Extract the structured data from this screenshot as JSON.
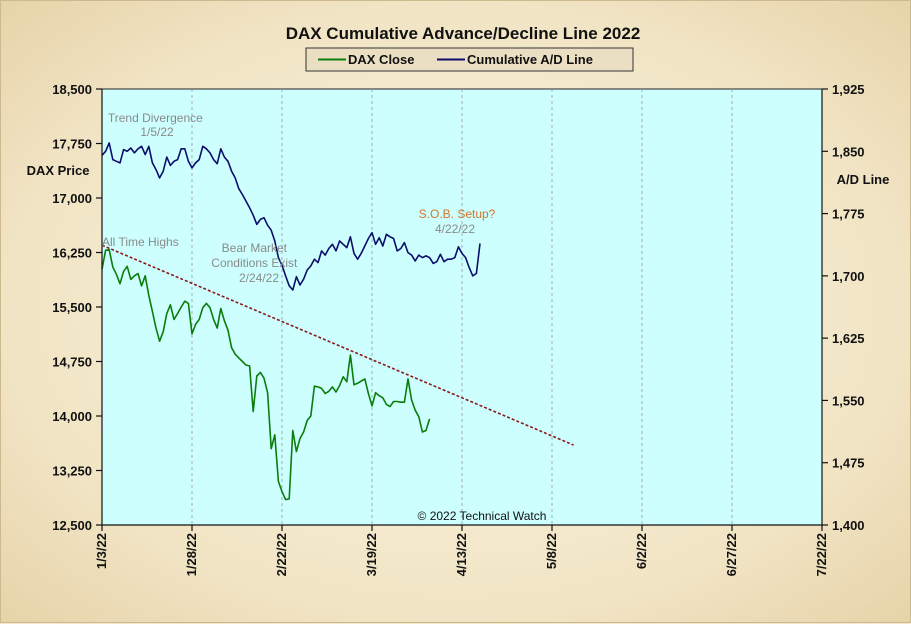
{
  "chart_data": {
    "type": "line",
    "title": "DAX Cumulative Advance/Decline Line 2022",
    "ylabel_left": "DAX Price",
    "ylabel_right": "A/D Line",
    "ylim_left": [
      12500,
      18500
    ],
    "ylim_right": [
      1400,
      1925
    ],
    "yticks_left": [
      "18,500",
      "17,750",
      "17,000",
      "16,250",
      "15,500",
      "14,750",
      "14,000",
      "13,250",
      "12,500"
    ],
    "yticks_right": [
      "1,925",
      "1,850",
      "1,775",
      "1,700",
      "1,625",
      "1,550",
      "1,475",
      "1,400"
    ],
    "xticks": [
      "1/3/22",
      "1/28/22",
      "2/22/22",
      "3/19/22",
      "4/13/22",
      "5/8/22",
      "6/2/22",
      "6/27/22",
      "7/22/22"
    ],
    "xlim": [
      "2022-01-03",
      "2022-07-22"
    ],
    "grid": "vertical dashed at x ticks",
    "legend": {
      "position": "top-center",
      "entries": [
        {
          "name": "DAX Close",
          "color": "#0a7d0a"
        },
        {
          "name": "Cumulative A/D Line",
          "color": "#0d0d6b"
        }
      ]
    },
    "colors": {
      "plot_bg": "#ccfffe",
      "trendline": "#8b1a1a"
    },
    "series": [
      {
        "name": "Cumulative A/D Line",
        "axis": "right",
        "color": "#0d0d6b",
        "points": [
          [
            "2022-01-03",
            1845
          ],
          [
            "2022-01-04",
            1850
          ],
          [
            "2022-01-05",
            1860
          ],
          [
            "2022-01-06",
            1840
          ],
          [
            "2022-01-07",
            1838
          ],
          [
            "2022-01-08",
            1836
          ],
          [
            "2022-01-09",
            1852
          ],
          [
            "2022-01-10",
            1850
          ],
          [
            "2022-01-11",
            1854
          ],
          [
            "2022-01-12",
            1848
          ],
          [
            "2022-01-13",
            1853
          ],
          [
            "2022-01-14",
            1856
          ],
          [
            "2022-01-15",
            1846
          ],
          [
            "2022-01-16",
            1856
          ],
          [
            "2022-01-17",
            1836
          ],
          [
            "2022-01-18",
            1828
          ],
          [
            "2022-01-19",
            1818
          ],
          [
            "2022-01-20",
            1826
          ],
          [
            "2022-01-21",
            1843
          ],
          [
            "2022-01-22",
            1833
          ],
          [
            "2022-01-23",
            1838
          ],
          [
            "2022-01-24",
            1840
          ],
          [
            "2022-01-25",
            1853
          ],
          [
            "2022-01-26",
            1853
          ],
          [
            "2022-01-27",
            1838
          ],
          [
            "2022-01-28",
            1830
          ],
          [
            "2022-01-29",
            1836
          ],
          [
            "2022-01-30",
            1840
          ],
          [
            "2022-01-31",
            1856
          ],
          [
            "2022-02-01",
            1853
          ],
          [
            "2022-02-02",
            1848
          ],
          [
            "2022-02-03",
            1840
          ],
          [
            "2022-02-04",
            1835
          ],
          [
            "2022-02-05",
            1853
          ],
          [
            "2022-02-06",
            1843
          ],
          [
            "2022-02-07",
            1838
          ],
          [
            "2022-02-08",
            1826
          ],
          [
            "2022-02-09",
            1818
          ],
          [
            "2022-02-10",
            1805
          ],
          [
            "2022-02-11",
            1798
          ],
          [
            "2022-02-12",
            1790
          ],
          [
            "2022-02-13",
            1782
          ],
          [
            "2022-02-14",
            1773
          ],
          [
            "2022-02-15",
            1762
          ],
          [
            "2022-02-16",
            1768
          ],
          [
            "2022-02-17",
            1770
          ],
          [
            "2022-02-18",
            1761
          ],
          [
            "2022-02-19",
            1755
          ],
          [
            "2022-02-20",
            1742
          ],
          [
            "2022-02-21",
            1722
          ],
          [
            "2022-02-22",
            1713
          ],
          [
            "2022-02-23",
            1700
          ],
          [
            "2022-02-24",
            1688
          ],
          [
            "2022-02-25",
            1683
          ],
          [
            "2022-02-26",
            1699
          ],
          [
            "2022-02-27",
            1689
          ],
          [
            "2022-02-28",
            1696
          ],
          [
            "2022-03-01",
            1707
          ],
          [
            "2022-03-02",
            1712
          ],
          [
            "2022-03-03",
            1720
          ],
          [
            "2022-03-04",
            1716
          ],
          [
            "2022-03-05",
            1730
          ],
          [
            "2022-03-06",
            1725
          ],
          [
            "2022-03-07",
            1733
          ],
          [
            "2022-03-08",
            1738
          ],
          [
            "2022-03-09",
            1730
          ],
          [
            "2022-03-10",
            1742
          ],
          [
            "2022-03-11",
            1738
          ],
          [
            "2022-03-12",
            1734
          ],
          [
            "2022-03-13",
            1747
          ],
          [
            "2022-03-14",
            1727
          ],
          [
            "2022-03-15",
            1720
          ],
          [
            "2022-03-16",
            1727
          ],
          [
            "2022-03-17",
            1736
          ],
          [
            "2022-03-18",
            1745
          ],
          [
            "2022-03-19",
            1752
          ],
          [
            "2022-03-20",
            1738
          ],
          [
            "2022-03-21",
            1746
          ],
          [
            "2022-03-22",
            1736
          ],
          [
            "2022-03-23",
            1750
          ],
          [
            "2022-03-24",
            1747
          ],
          [
            "2022-03-25",
            1745
          ],
          [
            "2022-03-26",
            1730
          ],
          [
            "2022-03-27",
            1733
          ],
          [
            "2022-03-28",
            1740
          ],
          [
            "2022-03-29",
            1728
          ],
          [
            "2022-03-30",
            1725
          ],
          [
            "2022-03-31",
            1718
          ],
          [
            "2022-04-01",
            1725
          ],
          [
            "2022-04-02",
            1722
          ],
          [
            "2022-04-03",
            1724
          ],
          [
            "2022-04-04",
            1722
          ],
          [
            "2022-04-05",
            1715
          ],
          [
            "2022-04-06",
            1717
          ],
          [
            "2022-04-07",
            1726
          ],
          [
            "2022-04-08",
            1717
          ],
          [
            "2022-04-09",
            1720
          ],
          [
            "2022-04-10",
            1720
          ],
          [
            "2022-04-11",
            1722
          ],
          [
            "2022-04-12",
            1735
          ],
          [
            "2022-04-13",
            1727
          ],
          [
            "2022-04-14",
            1722
          ],
          [
            "2022-04-15",
            1710
          ],
          [
            "2022-04-16",
            1700
          ],
          [
            "2022-04-17",
            1703
          ],
          [
            "2022-04-18",
            1739
          ]
        ]
      },
      {
        "name": "DAX Close",
        "axis": "left",
        "color": "#0a7d0a",
        "points": [
          [
            "2022-01-03",
            16020
          ],
          [
            "2022-01-04",
            16280
          ],
          [
            "2022-01-05",
            16290
          ],
          [
            "2022-01-06",
            16050
          ],
          [
            "2022-01-07",
            15950
          ],
          [
            "2022-01-08",
            15820
          ],
          [
            "2022-01-09",
            15990
          ],
          [
            "2022-01-10",
            16060
          ],
          [
            "2022-01-11",
            15880
          ],
          [
            "2022-01-12",
            15930
          ],
          [
            "2022-01-13",
            15960
          ],
          [
            "2022-01-14",
            15790
          ],
          [
            "2022-01-15",
            15930
          ],
          [
            "2022-01-16",
            15660
          ],
          [
            "2022-01-17",
            15440
          ],
          [
            "2022-01-18",
            15210
          ],
          [
            "2022-01-19",
            15030
          ],
          [
            "2022-01-20",
            15160
          ],
          [
            "2022-01-21",
            15410
          ],
          [
            "2022-01-22",
            15530
          ],
          [
            "2022-01-23",
            15330
          ],
          [
            "2022-01-24",
            15410
          ],
          [
            "2022-01-25",
            15500
          ],
          [
            "2022-01-26",
            15580
          ],
          [
            "2022-01-27",
            15550
          ],
          [
            "2022-01-28",
            15130
          ],
          [
            "2022-01-29",
            15260
          ],
          [
            "2022-01-30",
            15330
          ],
          [
            "2022-01-31",
            15490
          ],
          [
            "2022-02-01",
            15550
          ],
          [
            "2022-02-02",
            15490
          ],
          [
            "2022-02-03",
            15330
          ],
          [
            "2022-02-04",
            15210
          ],
          [
            "2022-02-05",
            15480
          ],
          [
            "2022-02-06",
            15310
          ],
          [
            "2022-02-07",
            15180
          ],
          [
            "2022-02-08",
            14940
          ],
          [
            "2022-02-09",
            14850
          ],
          [
            "2022-02-10",
            14800
          ],
          [
            "2022-02-11",
            14750
          ],
          [
            "2022-02-12",
            14700
          ],
          [
            "2022-02-13",
            14690
          ],
          [
            "2022-02-14",
            14060
          ],
          [
            "2022-02-15",
            14550
          ],
          [
            "2022-02-16",
            14600
          ],
          [
            "2022-02-17",
            14520
          ],
          [
            "2022-02-18",
            14320
          ],
          [
            "2022-02-19",
            13550
          ],
          [
            "2022-02-20",
            13740
          ],
          [
            "2022-02-21",
            13100
          ],
          [
            "2022-02-22",
            12960
          ],
          [
            "2022-02-23",
            12850
          ],
          [
            "2022-02-24",
            12860
          ],
          [
            "2022-02-25",
            13800
          ],
          [
            "2022-02-26",
            13510
          ],
          [
            "2022-02-27",
            13690
          ],
          [
            "2022-02-28",
            13780
          ],
          [
            "2022-03-01",
            13940
          ],
          [
            "2022-03-02",
            14000
          ],
          [
            "2022-03-03",
            14410
          ],
          [
            "2022-03-04",
            14400
          ],
          [
            "2022-03-05",
            14380
          ],
          [
            "2022-03-06",
            14310
          ],
          [
            "2022-03-07",
            14340
          ],
          [
            "2022-03-08",
            14400
          ],
          [
            "2022-03-09",
            14330
          ],
          [
            "2022-03-10",
            14420
          ],
          [
            "2022-03-11",
            14540
          ],
          [
            "2022-03-12",
            14470
          ],
          [
            "2022-03-13",
            14840
          ],
          [
            "2022-03-14",
            14430
          ],
          [
            "2022-03-15",
            14450
          ],
          [
            "2022-03-16",
            14480
          ],
          [
            "2022-03-17",
            14510
          ],
          [
            "2022-03-18",
            14310
          ],
          [
            "2022-03-19",
            14140
          ],
          [
            "2022-03-20",
            14320
          ],
          [
            "2022-03-21",
            14280
          ],
          [
            "2022-03-22",
            14250
          ],
          [
            "2022-03-23",
            14160
          ],
          [
            "2022-03-24",
            14130
          ],
          [
            "2022-03-25",
            14200
          ],
          [
            "2022-03-26",
            14200
          ],
          [
            "2022-03-27",
            14190
          ],
          [
            "2022-03-28",
            14190
          ],
          [
            "2022-03-29",
            14510
          ],
          [
            "2022-03-30",
            14220
          ],
          [
            "2022-03-31",
            14080
          ],
          [
            "2022-04-01",
            13990
          ],
          [
            "2022-04-02",
            13780
          ],
          [
            "2022-04-03",
            13800
          ],
          [
            "2022-04-04",
            13960
          ]
        ]
      }
    ],
    "trendline": {
      "axis": "left",
      "from": [
        "2022-01-03",
        16350
      ],
      "to": [
        "2022-05-14",
        13600
      ]
    },
    "annotations": [
      {
        "lines": [
          "Trend  Divergence",
          "1/5/22"
        ],
        "style": "gray"
      },
      {
        "lines": [
          "All Time Highs"
        ],
        "style": "gray"
      },
      {
        "lines": [
          "Bear Market",
          "Conditions  Exist",
          "2/24/22"
        ],
        "style": "gray"
      },
      {
        "lines": [
          "S.O.B. Setup?"
        ],
        "style": "orange"
      },
      {
        "lines": [
          "4/22/22"
        ],
        "style": "gray"
      }
    ],
    "footnote": "© 2022 Technical  Watch"
  }
}
